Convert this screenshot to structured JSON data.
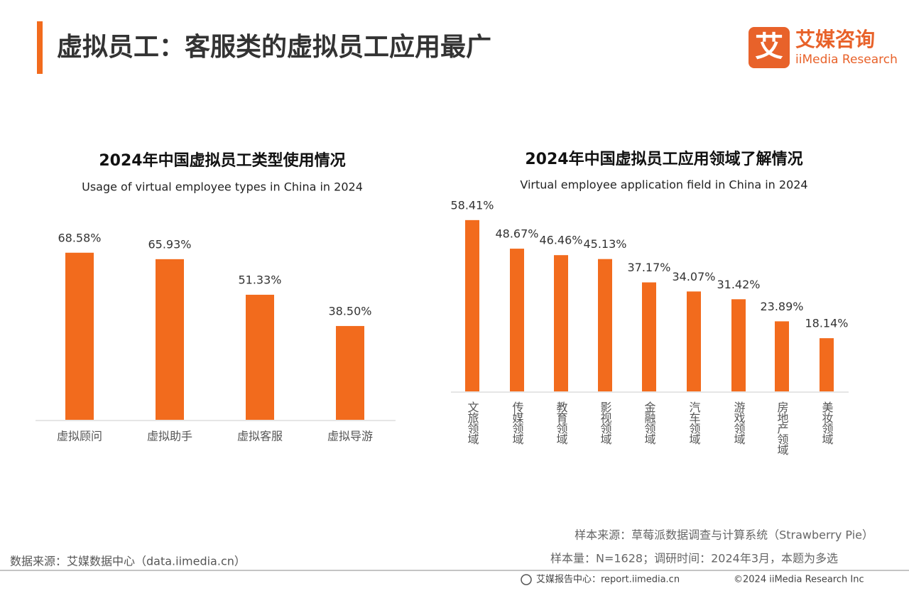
{
  "header": {
    "title": "虚拟员工：客服类的虚拟员工应用最广",
    "logo_mark": "艾",
    "logo_name": "艾媒咨询",
    "logo_en": "iiMedia Research"
  },
  "chart_data": [
    {
      "type": "bar",
      "title": "2024年中国虚拟员工类型使用情况",
      "subtitle": "Usage of virtual employee types in China in 2024",
      "categories": [
        "虚拟顾问",
        "虚拟助手",
        "虚拟客服",
        "虚拟导游"
      ],
      "values": [
        68.58,
        65.93,
        51.33,
        38.5
      ],
      "value_labels": [
        "68.58%",
        "65.93%",
        "51.33%",
        "38.50%"
      ],
      "color": "#f26b1d",
      "ylim": [
        0,
        100
      ],
      "category_orientation": "horizontal"
    },
    {
      "type": "bar",
      "title": "2024年中国虚拟员工应用领域了解情况",
      "subtitle": "Virtual employee application field in China in 2024",
      "categories": [
        "文旅领域",
        "传媒领域",
        "教育领域",
        "影视领域",
        "金融领域",
        "汽车领域",
        "游戏领域",
        "房地产领域",
        "美妆领域"
      ],
      "values": [
        58.41,
        48.67,
        46.46,
        45.13,
        37.17,
        34.07,
        31.42,
        23.89,
        18.14
      ],
      "value_labels": [
        "58.41%",
        "48.67%",
        "46.46%",
        "45.13%",
        "37.17%",
        "34.07%",
        "31.42%",
        "23.89%",
        "18.14%"
      ],
      "color": "#f26b1d",
      "ylim": [
        0,
        70
      ],
      "category_orientation": "vertical"
    }
  ],
  "footer": {
    "sample_source": "样本来源：草莓派数据调查与计算系统（Strawberry Pie）",
    "sample_size": "样本量：N=1628；调研时间：2024年3月，本题为多选",
    "data_source": "数据来源：艾媒数据中心（data.iimedia.cn）",
    "report_center": "艾媒报告中心：report.iimedia.cn",
    "copyright": "©2024 iiMedia Research Inc"
  }
}
